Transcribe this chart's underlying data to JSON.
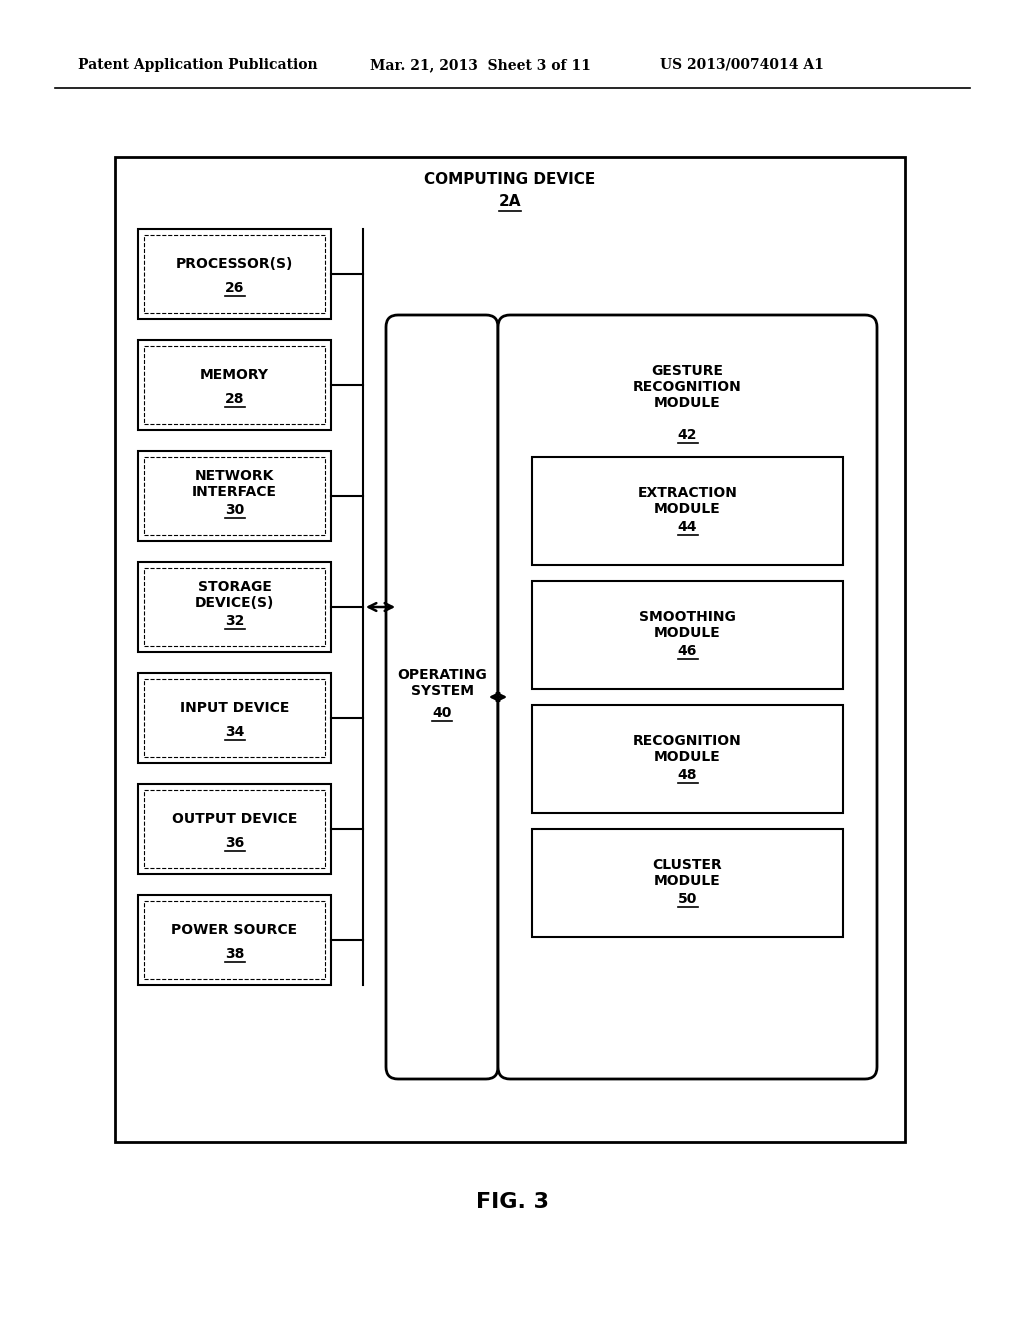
{
  "header_left": "Patent Application Publication",
  "header_mid": "Mar. 21, 2013  Sheet 3 of 11",
  "header_right": "US 2013/0074014 A1",
  "fig_label": "FIG. 3",
  "outer_box_label": "COMPUTING DEVICE",
  "outer_box_label2": "2A",
  "left_boxes": [
    {
      "label": "PROCESSOR(S)",
      "num": "26"
    },
    {
      "label": "MEMORY",
      "num": "28"
    },
    {
      "label": "NETWORK\nINTERFACE",
      "num": "30"
    },
    {
      "label": "STORAGE\nDEVICE(S)",
      "num": "32"
    },
    {
      "label": "INPUT DEVICE",
      "num": "34"
    },
    {
      "label": "OUTPUT DEVICE",
      "num": "36"
    },
    {
      "label": "POWER SOURCE",
      "num": "38"
    }
  ],
  "os_label": "OPERATING\nSYSTEM",
  "os_num": "40",
  "grm_label": "GESTURE\nRECOGNITION\nMODULE",
  "grm_num": "42",
  "right_inner_boxes": [
    {
      "label": "EXTRACTION\nMODULE",
      "num": "44"
    },
    {
      "label": "SMOOTHING\nMODULE",
      "num": "46"
    },
    {
      "label": "RECOGNITION\nMODULE",
      "num": "48"
    },
    {
      "label": "CLUSTER\nMODULE",
      "num": "50"
    }
  ],
  "bg_color": "#ffffff",
  "box_edge_color": "#000000",
  "text_color": "#000000"
}
